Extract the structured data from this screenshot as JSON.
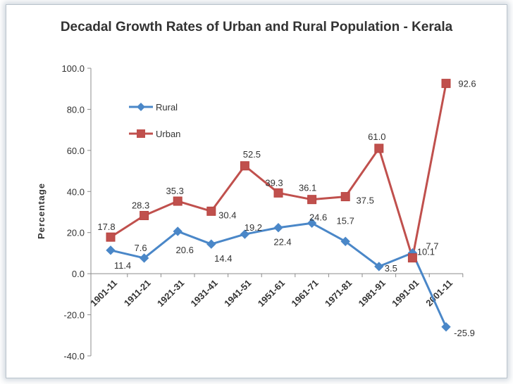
{
  "chart_data": {
    "type": "line",
    "title": "Decadal Growth Rates of Urban and Rural Population - Kerala",
    "xlabel": "",
    "ylabel": "Percentage",
    "ylim": [
      -40,
      100
    ],
    "yticks": [
      "100.0",
      "80.0",
      "60.0",
      "40.0",
      "20.0",
      "0.0",
      "-20.0",
      "-40.0"
    ],
    "ytick_values": [
      100,
      80,
      60,
      40,
      20,
      0,
      -20,
      -40
    ],
    "categories": [
      "1901-11",
      "1911-21",
      "1921-31",
      "1931-41",
      "1941-51",
      "1951-61",
      "1961-71",
      "1971-81",
      "1981-91",
      "1991-01",
      "2001-11"
    ],
    "series": [
      {
        "name": "Rural",
        "color": "#4a87c8",
        "marker": "diamond",
        "values": [
          11.4,
          7.6,
          20.6,
          14.4,
          19.2,
          22.4,
          24.6,
          15.7,
          3.5,
          10.1,
          -25.9
        ],
        "labels": [
          "11.4",
          "7.6",
          "20.6",
          "14.4",
          "19.2",
          "22.4",
          "24.6",
          "15.7",
          "3.5",
          "10.1",
          "-25.9"
        ]
      },
      {
        "name": "Urban",
        "color": "#c0504d",
        "marker": "square",
        "values": [
          17.8,
          28.3,
          35.3,
          30.4,
          52.5,
          39.3,
          36.1,
          37.5,
          61.0,
          7.7,
          92.6
        ],
        "labels": [
          "17.8",
          "28.3",
          "35.3",
          "30.4",
          "52.5",
          "39.3",
          "36.1",
          "37.5",
          "61.0",
          "7.7",
          "92.6"
        ]
      }
    ],
    "legend": "top-left",
    "grid": false
  }
}
